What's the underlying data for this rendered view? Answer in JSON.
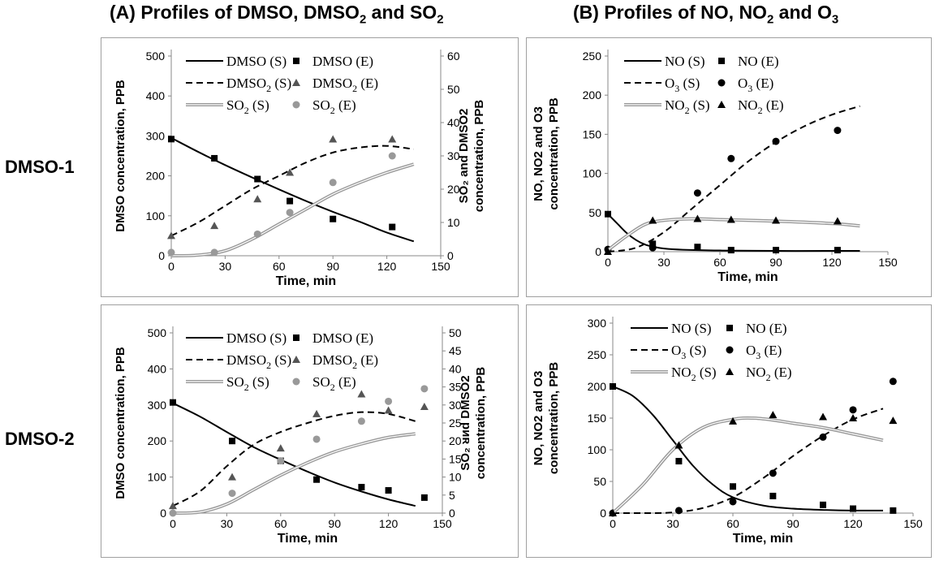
{
  "titles": {
    "A": {
      "pre": "(A) Profiles of DMSO, DMSO",
      "s1": "2",
      "mid": " and SO",
      "s2": "2",
      "post": ""
    },
    "B": {
      "pre": "(B) Profiles of NO, NO",
      "s1": "2",
      "mid": " and O",
      "s2": "3",
      "post": ""
    }
  },
  "row_labels": [
    "DMSO-1",
    "DMSO-2"
  ],
  "chart_data": [
    {
      "id": "A1",
      "type": "line",
      "xlabel": "Time, min",
      "xlim": [
        0,
        150
      ],
      "xticks": [
        0,
        30,
        60,
        90,
        120,
        150
      ],
      "ylabel": "DMSO concentration, PPB",
      "ylim": [
        0,
        500
      ],
      "yticks": [
        0,
        100,
        200,
        300,
        400,
        500
      ],
      "y2label": "SO₂ and DMSO2 concentration, PPB",
      "y2lim": [
        0,
        60
      ],
      "y2ticks": [
        0,
        10,
        20,
        30,
        40,
        50,
        60
      ],
      "series": [
        {
          "name": "DMSO (S)",
          "kind": "line",
          "style": "solid",
          "color": "#000000",
          "axis": "left",
          "x": [
            0,
            15,
            30,
            45,
            60,
            75,
            90,
            105,
            120,
            135
          ],
          "y": [
            295,
            260,
            227,
            196,
            166,
            137,
            110,
            85,
            58,
            36
          ]
        },
        {
          "name": "DMSO (E)",
          "kind": "points",
          "marker": "square",
          "color": "#000000",
          "axis": "left",
          "x": [
            0,
            24,
            48,
            66,
            90,
            123
          ],
          "y": [
            292,
            244,
            192,
            137,
            92,
            72
          ]
        },
        {
          "name": "DMSO2 (S)",
          "kind": "line",
          "style": "dash",
          "color": "#000000",
          "axis": "right",
          "x": [
            0,
            15,
            30,
            45,
            60,
            75,
            90,
            105,
            120,
            135
          ],
          "y": [
            6,
            10,
            15,
            20,
            24,
            28,
            31,
            32.5,
            33,
            32
          ]
        },
        {
          "name": "DMSO2 (E)",
          "kind": "points",
          "marker": "triangle",
          "color": "#555555",
          "axis": "right",
          "x": [
            0,
            24,
            48,
            66,
            90,
            123
          ],
          "y": [
            6,
            9,
            17,
            25,
            35,
            35
          ]
        },
        {
          "name": "SO2 (S)",
          "kind": "line",
          "style": "double",
          "color": "#999999",
          "axis": "right",
          "x": [
            0,
            15,
            30,
            45,
            60,
            75,
            90,
            105,
            120,
            135
          ],
          "y": [
            0,
            0.2,
            1.5,
            5,
            9.5,
            14,
            18.5,
            22,
            25,
            27.5
          ]
        },
        {
          "name": "SO2 (E)",
          "kind": "points",
          "marker": "circle",
          "color": "#999999",
          "axis": "right",
          "x": [
            0,
            24,
            48,
            66,
            90,
            123
          ],
          "y": [
            1,
            1,
            6.5,
            13,
            22,
            30
          ]
        }
      ],
      "legend_labels": [
        {
          "text": "DMSO (S)",
          "sub": ""
        },
        {
          "text": "DMSO (E)",
          "sub": ""
        },
        {
          "text": "DMSO",
          "sub": "2",
          "tail": " (S)"
        },
        {
          "text": "DMSO",
          "sub": "2",
          "tail": " (E)"
        },
        {
          "text": "SO",
          "sub": "2",
          "tail": " (S)"
        },
        {
          "text": "SO",
          "sub": "2",
          "tail": " (E)"
        }
      ]
    },
    {
      "id": "B1",
      "type": "line",
      "xlabel": "Time, min",
      "xlim": [
        0,
        150
      ],
      "xticks": [
        0,
        30,
        60,
        90,
        120,
        150
      ],
      "ylabel": "NO, NO2 and O3 concentration, PPB",
      "ylim": [
        0,
        250
      ],
      "yticks": [
        0,
        50,
        100,
        150,
        200,
        250
      ],
      "series": [
        {
          "name": "NO (S)",
          "kind": "line",
          "style": "solid",
          "color": "#000000",
          "x": [
            0,
            5,
            10,
            15,
            20,
            25,
            30,
            40,
            60,
            90,
            120,
            135
          ],
          "y": [
            48,
            36,
            24,
            15,
            9,
            6,
            4,
            2.5,
            1.5,
            1,
            1,
            1
          ]
        },
        {
          "name": "NO (E)",
          "kind": "points",
          "marker": "square",
          "color": "#000000",
          "x": [
            0,
            24,
            48,
            66,
            90,
            123
          ],
          "y": [
            48,
            10,
            6,
            2,
            2,
            2
          ]
        },
        {
          "name": "O3 (S)",
          "kind": "line",
          "style": "dash",
          "color": "#000000",
          "x": [
            0,
            15,
            30,
            45,
            60,
            75,
            90,
            105,
            120,
            135
          ],
          "y": [
            0,
            5,
            25,
            55,
            85,
            115,
            140,
            160,
            175,
            186
          ]
        },
        {
          "name": "O3 (E)",
          "kind": "points",
          "marker": "circle",
          "color": "#000000",
          "x": [
            0,
            24,
            48,
            66,
            90,
            123
          ],
          "y": [
            3,
            5,
            75,
            119,
            141,
            155
          ]
        },
        {
          "name": "NO2 (S)",
          "kind": "line",
          "style": "double",
          "color": "#999999",
          "x": [
            0,
            10,
            20,
            30,
            45,
            60,
            90,
            120,
            135
          ],
          "y": [
            2,
            20,
            35,
            40,
            42,
            41,
            39,
            36,
            33
          ]
        },
        {
          "name": "NO2 (E)",
          "kind": "points",
          "marker": "triangle",
          "color": "#000000",
          "x": [
            0,
            24,
            48,
            66,
            90,
            123
          ],
          "y": [
            0,
            40,
            42,
            41,
            40,
            39
          ]
        }
      ],
      "legend_labels": [
        {
          "text": "NO (S)",
          "sub": ""
        },
        {
          "text": "NO (E)",
          "sub": ""
        },
        {
          "text": "O",
          "sub": "3",
          "tail": " (S)"
        },
        {
          "text": "O",
          "sub": "3",
          "tail": " (E)"
        },
        {
          "text": "NO",
          "sub": "2",
          "tail": " (S)"
        },
        {
          "text": "NO",
          "sub": "2",
          "tail": " (E)"
        }
      ]
    },
    {
      "id": "A2",
      "type": "line",
      "xlabel": "Time, min",
      "xlim": [
        0,
        150
      ],
      "xticks": [
        0,
        30,
        60,
        90,
        120,
        150
      ],
      "ylabel": "DMSO concentration, PPB",
      "ylim": [
        0,
        500
      ],
      "yticks": [
        0,
        100,
        200,
        300,
        400,
        500
      ],
      "y2label": "SO₂ ᴚᴎd DMSO2 concentration, PPB",
      "y2lim": [
        0,
        50
      ],
      "y2ticks": [
        0,
        5,
        10,
        15,
        20,
        25,
        30,
        35,
        40,
        45,
        50
      ],
      "series": [
        {
          "name": "DMSO (S)",
          "kind": "line",
          "style": "solid",
          "color": "#000000",
          "axis": "left",
          "x": [
            0,
            15,
            30,
            45,
            60,
            75,
            90,
            105,
            120,
            135
          ],
          "y": [
            305,
            268,
            225,
            183,
            148,
            115,
            85,
            60,
            38,
            20
          ]
        },
        {
          "name": "DMSO (E)",
          "kind": "points",
          "marker": "square",
          "color": "#000000",
          "axis": "left",
          "x": [
            0,
            33,
            60,
            80,
            105,
            120,
            140
          ],
          "y": [
            307,
            200,
            145,
            93,
            72,
            63,
            43
          ]
        },
        {
          "name": "DMSO2 (S)",
          "kind": "line",
          "style": "dash",
          "color": "#000000",
          "axis": "right",
          "x": [
            0,
            15,
            30,
            45,
            60,
            75,
            90,
            105,
            120,
            135
          ],
          "y": [
            2,
            6,
            13,
            19,
            22.5,
            25,
            27,
            28,
            27.5,
            25.5
          ]
        },
        {
          "name": "DMSO2 (E)",
          "kind": "points",
          "marker": "triangle",
          "color": "#555555",
          "axis": "right",
          "x": [
            0,
            33,
            60,
            80,
            105,
            120,
            140
          ],
          "y": [
            2,
            10,
            18,
            27.5,
            33,
            28.5,
            29.5
          ]
        },
        {
          "name": "SO2 (S)",
          "kind": "line",
          "style": "double",
          "color": "#999999",
          "axis": "right",
          "x": [
            0,
            15,
            30,
            45,
            60,
            75,
            90,
            105,
            120,
            135
          ],
          "y": [
            0,
            0.3,
            2.5,
            6.5,
            10.5,
            14,
            17,
            19.2,
            21,
            22
          ]
        },
        {
          "name": "SO2 (E)",
          "kind": "points",
          "marker": "circle",
          "color": "#999999",
          "axis": "right",
          "x": [
            0,
            33,
            60,
            80,
            105,
            120,
            140
          ],
          "y": [
            0,
            5.5,
            14.5,
            20.5,
            25.5,
            31,
            34.5
          ]
        }
      ],
      "legend_labels": [
        {
          "text": "DMSO (S)",
          "sub": ""
        },
        {
          "text": "DMSO (E)",
          "sub": ""
        },
        {
          "text": "DMSO",
          "sub": "2",
          "tail": " (S)"
        },
        {
          "text": "DMSO",
          "sub": "2",
          "tail": " (E)"
        },
        {
          "text": "SO",
          "sub": "2",
          "tail": " (S)"
        },
        {
          "text": "SO",
          "sub": "2",
          "tail": " (E)"
        }
      ]
    },
    {
      "id": "B2",
      "type": "line",
      "xlabel": "Time, min",
      "xlim": [
        0,
        150
      ],
      "xticks": [
        0,
        30,
        60,
        90,
        120,
        150
      ],
      "ylabel": "NO, NO2 and O3 concentration, PPB",
      "ylim": [
        0,
        300
      ],
      "yticks": [
        0,
        50,
        100,
        150,
        200,
        250,
        300
      ],
      "series": [
        {
          "name": "NO (S)",
          "kind": "line",
          "style": "solid",
          "color": "#000000",
          "x": [
            0,
            10,
            20,
            30,
            40,
            50,
            60,
            75,
            90,
            105,
            120,
            135
          ],
          "y": [
            200,
            185,
            155,
            115,
            75,
            45,
            25,
            12,
            7,
            5,
            4,
            4
          ]
        },
        {
          "name": "NO (E)",
          "kind": "points",
          "marker": "square",
          "color": "#000000",
          "x": [
            0,
            33,
            60,
            80,
            105,
            120,
            140
          ],
          "y": [
            200,
            82,
            42,
            27,
            13,
            7,
            4
          ]
        },
        {
          "name": "O3 (S)",
          "kind": "line",
          "style": "dash",
          "color": "#000000",
          "x": [
            0,
            15,
            30,
            45,
            60,
            75,
            90,
            105,
            120,
            135
          ],
          "y": [
            0,
            0,
            1,
            8,
            25,
            55,
            90,
            122,
            148,
            165
          ]
        },
        {
          "name": "O3 (E)",
          "kind": "points",
          "marker": "circle",
          "color": "#000000",
          "x": [
            0,
            33,
            60,
            80,
            105,
            120,
            140
          ],
          "y": [
            0,
            4,
            18,
            63,
            120,
            163,
            208
          ]
        },
        {
          "name": "NO2 (S)",
          "kind": "line",
          "style": "double",
          "color": "#999999",
          "x": [
            0,
            15,
            30,
            45,
            60,
            70,
            80,
            90,
            105,
            120,
            135
          ],
          "y": [
            0,
            45,
            100,
            135,
            148,
            150,
            147,
            142,
            135,
            125,
            115
          ]
        },
        {
          "name": "NO2 (E)",
          "kind": "points",
          "marker": "triangle",
          "color": "#000000",
          "x": [
            0,
            33,
            60,
            80,
            105,
            120,
            140
          ],
          "y": [
            0,
            107,
            145,
            155,
            152,
            150,
            146
          ]
        }
      ],
      "legend_labels": [
        {
          "text": "NO (S)",
          "sub": ""
        },
        {
          "text": "NO (E)",
          "sub": ""
        },
        {
          "text": "O",
          "sub": "3",
          "tail": " (S)"
        },
        {
          "text": "O",
          "sub": "3",
          "tail": " (E)"
        },
        {
          "text": "NO",
          "sub": "2",
          "tail": " (S)"
        },
        {
          "text": "NO",
          "sub": "2",
          "tail": " (E)"
        }
      ]
    }
  ]
}
